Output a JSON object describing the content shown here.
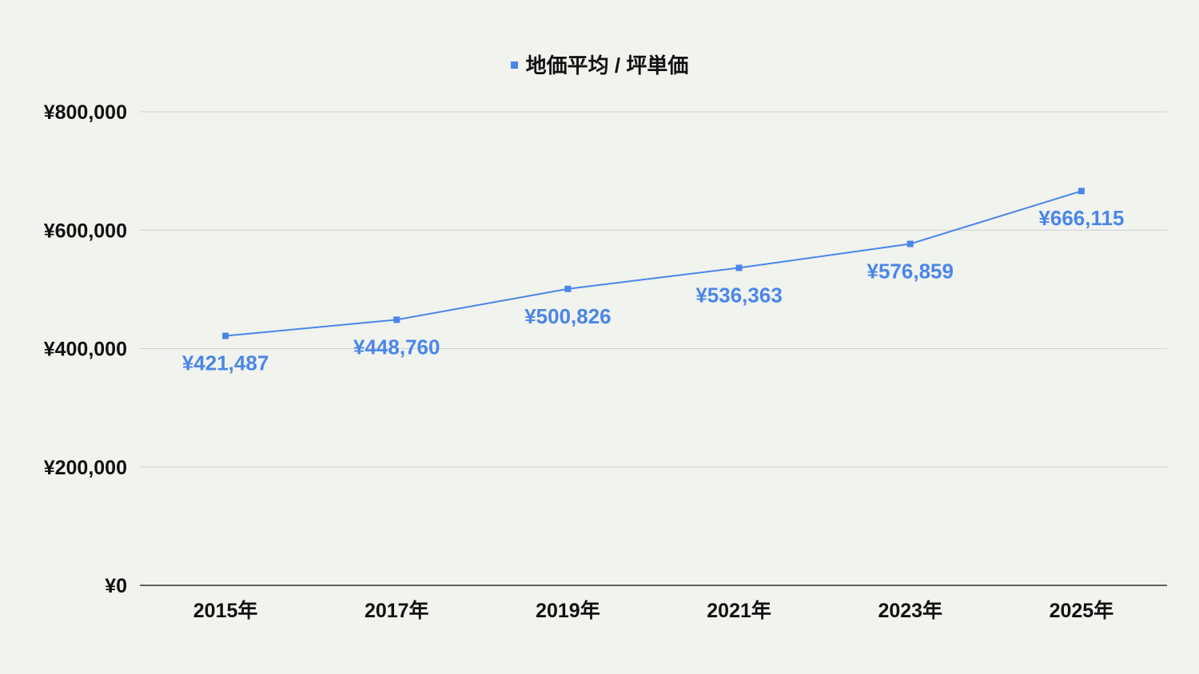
{
  "chart_data": {
    "type": "line",
    "categories": [
      "2015年",
      "2017年",
      "2019年",
      "2021年",
      "2023年",
      "2025年"
    ],
    "series": [
      {
        "name": "地価平均 / 坪単価",
        "values": [
          421487,
          448760,
          500826,
          536363,
          576859,
          666115
        ],
        "data_labels": [
          "¥421,487",
          "¥448,760",
          "¥500,826",
          "¥536,363",
          "¥576,859",
          "¥666,115"
        ]
      }
    ],
    "y_ticks": [
      0,
      200000,
      400000,
      600000,
      800000
    ],
    "y_tick_labels": [
      "¥0",
      "¥200,000",
      "¥400,000",
      "¥600,000",
      "¥800,000"
    ],
    "ylim": [
      0,
      800000
    ],
    "grid": true,
    "legend_position": "top-center",
    "colors": {
      "series": "#4a86e8",
      "grid": "#d0d0d0",
      "axis": "#333333",
      "background": "#f1f3ee"
    }
  }
}
